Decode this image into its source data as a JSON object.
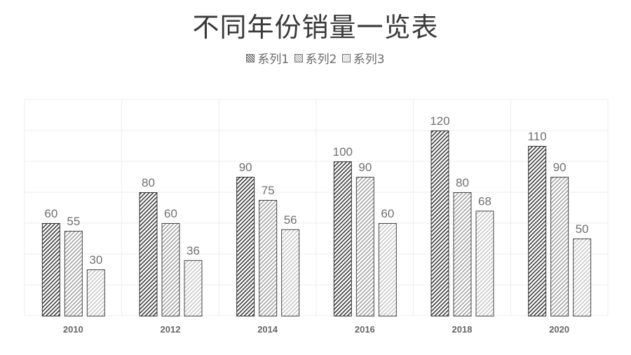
{
  "title": "不同年份销量一览表",
  "legend": [
    {
      "label": "系列1"
    },
    {
      "label": "系列2"
    },
    {
      "label": "系列3"
    }
  ],
  "chart_data": {
    "type": "bar",
    "title": "不同年份销量一览表",
    "xlabel": "",
    "ylabel": "",
    "categories": [
      "2010",
      "2012",
      "2014",
      "2016",
      "2018",
      "2020"
    ],
    "series": [
      {
        "name": "系列1",
        "values": [
          60,
          80,
          90,
          100,
          120,
          110
        ]
      },
      {
        "name": "系列2",
        "values": [
          55,
          60,
          75,
          90,
          80,
          90
        ]
      },
      {
        "name": "系列3",
        "values": [
          30,
          36,
          56,
          60,
          68,
          50
        ]
      }
    ],
    "ylim": [
      0,
      140
    ],
    "grid": true,
    "y_axis_visible": false,
    "data_labels": true,
    "legend_position": "top"
  }
}
